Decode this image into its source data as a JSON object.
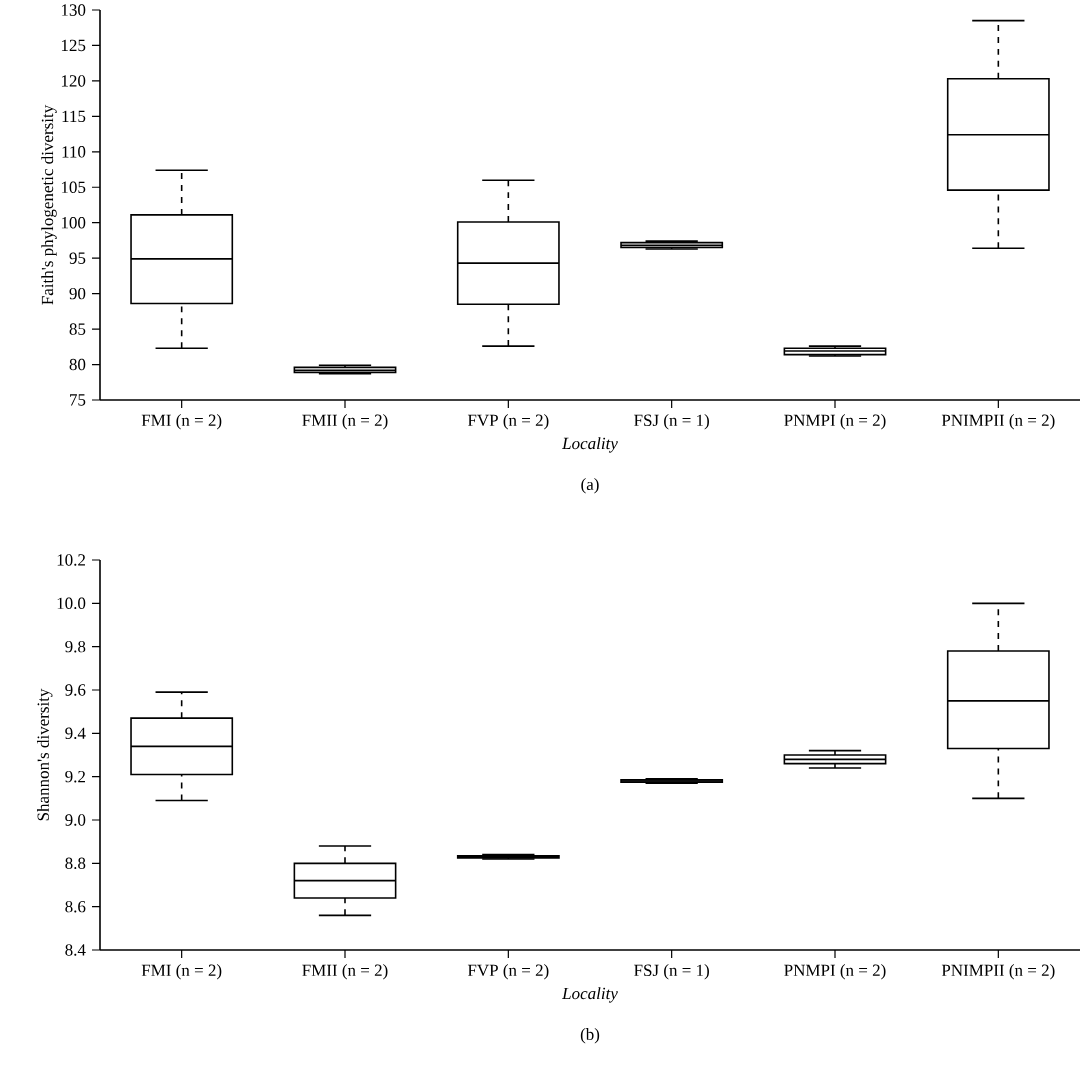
{
  "chart_data": [
    {
      "type": "box",
      "categories": [
        "FMI (n = 2)",
        "FMII (n = 2)",
        "FVP (n = 2)",
        "FSJ (n = 1)",
        "PNMPI (n = 2)",
        "PNIMPII (n = 2)"
      ],
      "xlabel": "*Locality*",
      "ylabel": "Faith's phylogenetic diversity",
      "ylim": [
        75,
        130
      ],
      "yticks": [
        75,
        80,
        85,
        90,
        95,
        100,
        105,
        110,
        115,
        120,
        125,
        130
      ],
      "annotations": [
        "(a)"
      ],
      "boxes": [
        {
          "low": 82.3,
          "q1": 88.6,
          "median": 94.9,
          "q3": 101.1,
          "high": 107.4
        },
        {
          "low": 78.7,
          "q1": 78.9,
          "median": 79.2,
          "q3": 79.6,
          "high": 79.9
        },
        {
          "low": 82.6,
          "q1": 88.5,
          "median": 94.3,
          "q3": 100.1,
          "high": 106.0
        },
        {
          "low": 96.3,
          "q1": 96.5,
          "median": 96.8,
          "q3": 97.2,
          "high": 97.4
        },
        {
          "low": 81.2,
          "q1": 81.4,
          "median": 81.9,
          "q3": 82.3,
          "high": 82.6
        },
        {
          "low": 96.4,
          "q1": 104.6,
          "median": 112.4,
          "q3": 120.3,
          "high": 128.5
        }
      ]
    },
    {
      "type": "box",
      "categories": [
        "FMI (n = 2)",
        "FMII (n = 2)",
        "FVP (n = 2)",
        "FSJ (n = 1)",
        "PNMPI (n = 2)",
        "PNIMPII (n = 2)"
      ],
      "xlabel": "*Locality*",
      "ylabel": "Shannon's diversity",
      "ylim": [
        8.4,
        10.2
      ],
      "yticks": [
        8.4,
        8.6,
        8.8,
        {
          "value": 9.0,
          "label": "9.0"
        },
        9.2,
        9.4,
        9.6,
        9.8,
        {
          "value": 10.0,
          "label": "10.0"
        },
        10.2
      ],
      "annotations": [
        "(b)"
      ],
      "boxes": [
        {
          "low": 9.09,
          "q1": 9.21,
          "median": 9.34,
          "q3": 9.47,
          "high": 9.59
        },
        {
          "low": 8.56,
          "q1": 8.64,
          "median": 8.72,
          "q3": 8.8,
          "high": 8.88
        },
        {
          "low": 8.82,
          "q1": 8.825,
          "median": 8.83,
          "q3": 8.835,
          "high": 8.84
        },
        {
          "low": 9.17,
          "q1": 9.175,
          "median": 9.18,
          "q3": 9.185,
          "high": 9.19
        },
        {
          "low": 9.24,
          "q1": 9.26,
          "median": 9.28,
          "q3": 9.3,
          "high": 9.32
        },
        {
          "low": 9.1,
          "q1": 9.33,
          "median": 9.55,
          "q3": 9.78,
          "high": 10.0
        }
      ]
    }
  ]
}
